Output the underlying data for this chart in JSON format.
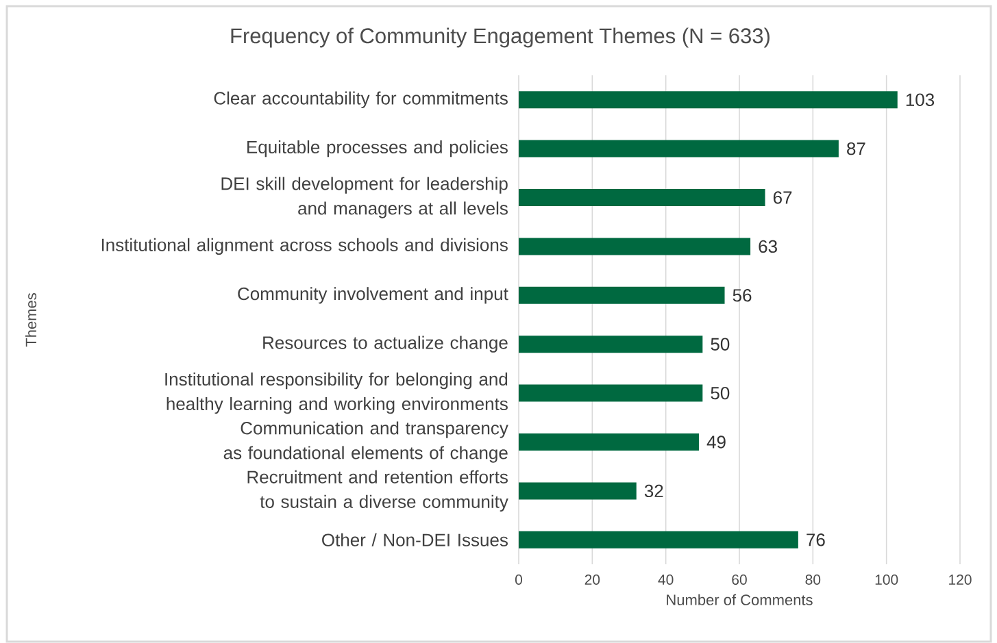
{
  "chart_data": {
    "type": "bar",
    "orientation": "horizontal",
    "title": "Frequency of Community Engagement Themes (N = 633)",
    "xlabel": "Number of Comments",
    "ylabel": "Themes",
    "categories": [
      "Clear accountability for commitments",
      "Equitable processes and policies",
      "DEI skill development for leadership and managers at all levels",
      "Institutional alignment across schools and divisions",
      "Community involvement and input",
      "Resources to actualize change",
      "Institutional responsibility for belonging and healthy learning and working environments",
      "Communication and transparency as foundational elements of change",
      "Recruitment and retention efforts to sustain a diverse community",
      "Other / Non-DEI Issues"
    ],
    "values": [
      103,
      87,
      67,
      63,
      56,
      50,
      50,
      49,
      32,
      76
    ],
    "color": "#006940",
    "xlim": [
      0,
      120
    ],
    "xticks": [
      0,
      20,
      40,
      60,
      80,
      100,
      120
    ],
    "grid": "x",
    "data_labels": true
  }
}
